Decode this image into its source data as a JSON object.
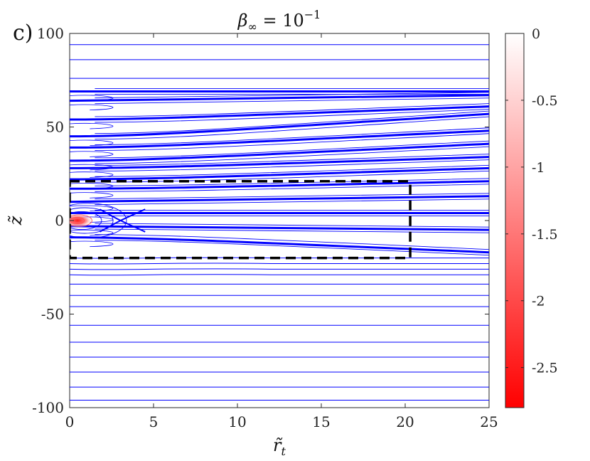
{
  "panel_label": "c)",
  "chart_data": {
    "type": "contour",
    "title": "β∞ = 10⁻¹",
    "title_parts": {
      "symbol": "β",
      "subscript": "∞",
      "equals": " = 10",
      "superscript": "−1"
    },
    "xlabel": "r̃",
    "xlabel_subscript": "t",
    "ylabel": "z̃",
    "xlim": [
      0,
      25
    ],
    "ylim": [
      -100,
      100
    ],
    "xticks": [
      0,
      5,
      10,
      15,
      20,
      25
    ],
    "yticks": [
      100,
      50,
      0,
      -50,
      -100
    ],
    "colorbar": {
      "range": [
        -2.8,
        0
      ],
      "ticks": [
        "0",
        "-0.5",
        "-1",
        "-1.5",
        "-2",
        "-2.5"
      ],
      "tick_values": [
        0,
        -0.5,
        -1,
        -1.5,
        -2,
        -2.5
      ],
      "color_min": "#ff0000",
      "color_max": "#ffffff"
    },
    "line_color": "#0000ff",
    "background_lines_z": [
      94,
      86,
      76,
      -34,
      -40,
      -46,
      -56,
      -65,
      -73,
      -81,
      -89,
      -96
    ],
    "lower_lines_z": [
      -20,
      -23,
      -26,
      -29
    ],
    "band_lines": [
      {
        "z0": 69,
        "z1": 69
      },
      {
        "z0": 64,
        "z1": 67
      },
      {
        "z0": 54,
        "z1": 61
      },
      {
        "z0": 45,
        "z1": 57
      },
      {
        "z0": 39,
        "z1": 48
      },
      {
        "z0": 32,
        "z1": 41
      },
      {
        "z0": 28,
        "z1": 34
      },
      {
        "z0": 22,
        "z1": 28
      },
      {
        "z0": 17,
        "z1": 21
      },
      {
        "z0": 10,
        "z1": 13
      },
      {
        "z0": 4,
        "z1": 4
      },
      {
        "z0": -3,
        "z1": -5
      },
      {
        "z0": -9,
        "z1": -17
      }
    ],
    "source_center": [
      0.3,
      0
    ],
    "dashed_box": {
      "x": [
        0,
        20.3
      ],
      "z": [
        -20,
        21
      ]
    },
    "box_color": "#000000"
  }
}
